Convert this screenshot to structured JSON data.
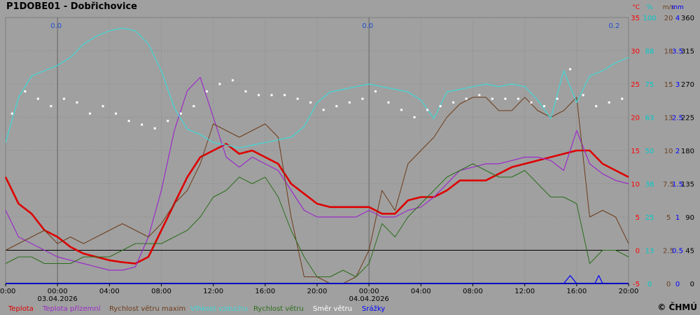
{
  "header": {
    "title": "P1DOBE01 - Dobřichovice"
  },
  "copyright": "© ČHMÚ",
  "chart_data": {
    "type": "line",
    "xlim": [
      0,
      48
    ],
    "x_ticks": [
      "20:00",
      "00:00",
      "04:00",
      "08:00",
      "12:00",
      "16:00",
      "20:00",
      "00:00",
      "04:00",
      "08:00",
      "12:00",
      "16:00",
      "20:00"
    ],
    "date_labels": [
      {
        "at": 4,
        "text": "03.04.2026"
      },
      {
        "at": 28,
        "text": "04.04.2026"
      }
    ],
    "rain_totals": [
      {
        "at": 4,
        "text": "0.0"
      },
      {
        "at": 28,
        "text": "0.0"
      },
      {
        "at": 47,
        "text": "0.2"
      }
    ],
    "grid": true,
    "axes": [
      {
        "unit": "°C",
        "color": "#ff0000",
        "ticks": [
          "35",
          "30",
          "25",
          "20",
          "15",
          "10",
          "5",
          "0",
          "-5"
        ]
      },
      {
        "unit": "%",
        "color": "#00c8c8",
        "ticks": [
          "100",
          "88",
          "75",
          "63",
          "50",
          "38",
          "25",
          "13",
          "0"
        ]
      },
      {
        "unit": "m/s",
        "color": "#6b3e1e",
        "ticks": [
          "20",
          "18",
          "15",
          "13",
          "10",
          "7.5",
          "5",
          "2.5",
          "0"
        ]
      },
      {
        "unit": "mm",
        "color": "#0000ff",
        "ticks": [
          "4",
          "3.5",
          "3",
          "2.5",
          "2",
          "1.5",
          "1",
          "0.5",
          "0"
        ]
      },
      {
        "unit": "",
        "color": "#000000",
        "ticks": [
          "360",
          "315",
          "270",
          "225",
          "180",
          "135",
          "90",
          "45",
          "0"
        ]
      }
    ],
    "series": [
      {
        "name": "Teplota",
        "color": "#dd0000",
        "axis": "°C",
        "width": 2.6,
        "x": [
          0,
          1,
          2,
          3,
          4,
          5,
          6,
          7,
          8,
          9,
          10,
          11,
          12,
          13,
          14,
          15,
          16,
          17,
          18,
          19,
          20,
          21,
          22,
          23,
          24,
          25,
          26,
          27,
          28,
          29,
          30,
          31,
          32,
          33,
          34,
          35,
          36,
          37,
          38,
          39,
          40,
          41,
          42,
          43,
          44,
          45,
          46,
          47,
          48
        ],
        "y": [
          11,
          7,
          5.5,
          3,
          2,
          0.5,
          -0.5,
          -1,
          -1.5,
          -1.8,
          -2,
          -1,
          3,
          7,
          11,
          14,
          15,
          16,
          14.5,
          15,
          14,
          13,
          10,
          8.5,
          7,
          6.5,
          6.5,
          6.5,
          6.5,
          5.5,
          5.5,
          7.5,
          8,
          8,
          9,
          10.5,
          10.5,
          10.5,
          11.5,
          12.5,
          13,
          13.5,
          14,
          14.5,
          15,
          15,
          13,
          12,
          11
        ]
      },
      {
        "name": "Teplota přízemní",
        "color": "#9a2bc8",
        "axis": "°C",
        "width": 1.2,
        "x": [
          0,
          1,
          2,
          3,
          4,
          5,
          6,
          7,
          8,
          9,
          10,
          11,
          12,
          13,
          14,
          15,
          16,
          17,
          18,
          19,
          20,
          21,
          22,
          23,
          24,
          25,
          26,
          27,
          28,
          29,
          30,
          31,
          32,
          33,
          34,
          35,
          36,
          37,
          38,
          39,
          40,
          41,
          42,
          43,
          44,
          45,
          46,
          47,
          48
        ],
        "y": [
          6,
          2,
          1,
          0,
          -1,
          -1.5,
          -2,
          -2.5,
          -3,
          -3,
          -2.5,
          2,
          9,
          18,
          24,
          26,
          20,
          14,
          12.5,
          14,
          13,
          12,
          9,
          6,
          5,
          5,
          5,
          5,
          6,
          5,
          5,
          6,
          6.5,
          8,
          10,
          12,
          12.5,
          13,
          13,
          13.5,
          14,
          14,
          13.5,
          12,
          18,
          13,
          11.5,
          10.5,
          10
        ]
      },
      {
        "name": "Rychlost větru maxim",
        "color": "#6e3c1a",
        "axis": "m/s",
        "width": 1,
        "x": [
          0,
          1,
          2,
          3,
          4,
          5,
          6,
          7,
          8,
          9,
          10,
          11,
          12,
          13,
          14,
          15,
          16,
          17,
          18,
          19,
          20,
          21,
          22,
          23,
          24,
          25,
          26,
          27,
          28,
          29,
          30,
          31,
          32,
          33,
          34,
          35,
          36,
          37,
          38,
          39,
          40,
          41,
          42,
          43,
          44,
          45,
          46,
          47,
          48
        ],
        "y": [
          2.5,
          3,
          3.5,
          4,
          3,
          3.5,
          3,
          3.5,
          4,
          4.5,
          4,
          3.5,
          4.5,
          6,
          7,
          9,
          12,
          11.5,
          11,
          11.5,
          12,
          11,
          5,
          0.5,
          0.5,
          0,
          0,
          0.5,
          2.5,
          7,
          5.5,
          9,
          10,
          11,
          12.5,
          13.5,
          14,
          14,
          13,
          13,
          14,
          13,
          12.5,
          13,
          14,
          5,
          5.5,
          5,
          3
        ]
      },
      {
        "name": "Vlhkost vzduchu",
        "color": "#40d8d8",
        "axis": "%",
        "width": 1.2,
        "x": [
          0,
          1,
          2,
          3,
          4,
          5,
          6,
          7,
          8,
          9,
          10,
          11,
          12,
          13,
          14,
          15,
          16,
          17,
          18,
          19,
          20,
          21,
          22,
          23,
          24,
          25,
          26,
          27,
          28,
          29,
          30,
          31,
          32,
          33,
          34,
          35,
          36,
          37,
          38,
          39,
          40,
          41,
          42,
          43,
          44,
          45,
          46,
          47,
          48
        ],
        "y": [
          53,
          70,
          78,
          80,
          82,
          85,
          90,
          93,
          95,
          96,
          95,
          90,
          80,
          66,
          58,
          56,
          53,
          52,
          51,
          52,
          53,
          54,
          55,
          59,
          68,
          72,
          73,
          74,
          75,
          74,
          73,
          72,
          69,
          62,
          72,
          73,
          74,
          75,
          74,
          75,
          74,
          69,
          62,
          80,
          68,
          78,
          80,
          83,
          85
        ]
      },
      {
        "name": "Rychlost větru",
        "color": "#2a6e1a",
        "axis": "m/s",
        "width": 1,
        "x": [
          0,
          1,
          2,
          3,
          4,
          5,
          6,
          7,
          8,
          9,
          10,
          11,
          12,
          13,
          14,
          15,
          16,
          17,
          18,
          19,
          20,
          21,
          22,
          23,
          24,
          25,
          26,
          27,
          28,
          29,
          30,
          31,
          32,
          33,
          34,
          35,
          36,
          37,
          38,
          39,
          40,
          41,
          42,
          43,
          44,
          45,
          46,
          47,
          48
        ],
        "y": [
          1.5,
          2,
          2,
          1.5,
          1.5,
          1.5,
          2,
          2,
          2,
          2.5,
          3,
          3,
          3,
          3.5,
          4,
          5,
          6.5,
          7,
          8,
          7.5,
          8,
          6.5,
          4,
          2,
          0.5,
          0.5,
          1,
          0.5,
          1.5,
          4.5,
          3.5,
          5,
          6,
          7,
          8,
          8.5,
          9,
          8.5,
          8,
          8,
          8.5,
          7.5,
          6.5,
          6.5,
          6,
          1.5,
          2.5,
          2.5,
          2
        ]
      },
      {
        "name": "Směr větru",
        "color": "#ffffff",
        "axis": "°",
        "points": true,
        "x": [
          0.5,
          1.5,
          2.5,
          3.5,
          4.5,
          5.5,
          6.5,
          7.5,
          8.5,
          9.5,
          10.5,
          11.5,
          12.5,
          13.5,
          14.5,
          15.5,
          16.5,
          17.5,
          18.5,
          19.5,
          20.5,
          21.5,
          22.5,
          23.5,
          24.5,
          25.5,
          26.5,
          27.5,
          28.5,
          29.5,
          30.5,
          31.5,
          32.5,
          33.5,
          34.5,
          35.5,
          36.5,
          37.5,
          38.5,
          39.5,
          40.5,
          41.5,
          42.5,
          43.5,
          44.5,
          45.5,
          46.5,
          47.5
        ],
        "y": [
          230,
          260,
          250,
          240,
          250,
          245,
          230,
          240,
          230,
          220,
          215,
          210,
          220,
          230,
          240,
          260,
          270,
          275,
          260,
          255,
          255,
          255,
          250,
          245,
          235,
          240,
          245,
          250,
          260,
          245,
          235,
          225,
          235,
          240,
          245,
          250,
          255,
          250,
          250,
          250,
          245,
          240,
          250,
          290,
          255,
          240,
          245,
          250
        ]
      },
      {
        "name": "Srážky",
        "color": "#0000ff",
        "axis": "mm",
        "width": 1.2,
        "x": [
          0,
          43,
          43.5,
          44,
          45.4,
          45.7,
          46,
          48
        ],
        "y": [
          0,
          0,
          0.12,
          0,
          0,
          0.12,
          0,
          0
        ]
      }
    ]
  }
}
